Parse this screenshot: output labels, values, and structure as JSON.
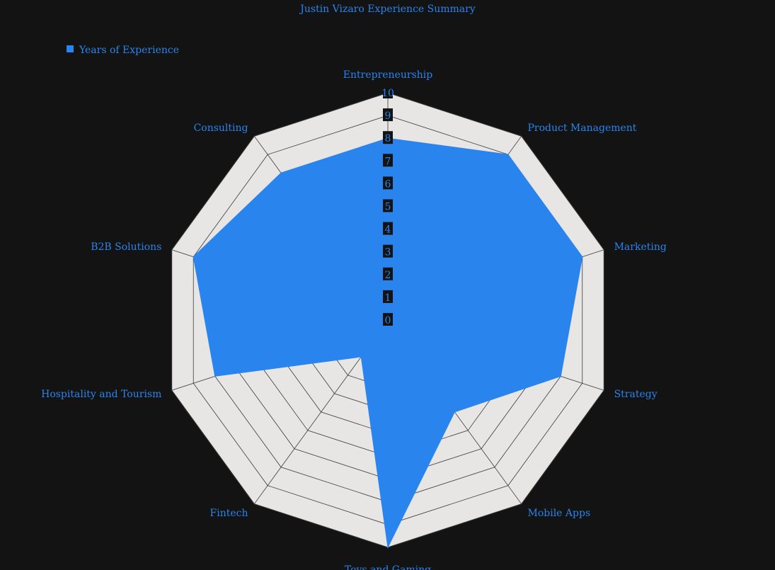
{
  "colors": {
    "background": "#131313",
    "text": "#2a84ee",
    "series": "#2a84ee",
    "grid_fill": "#e8e6e4",
    "grid_line": "#3a3a3a",
    "tick_box": "#131313"
  },
  "chart_data": {
    "type": "radar",
    "title": "Justin Vizaro Experience Summary",
    "legend_position": "top-left",
    "rlim": [
      0,
      10
    ],
    "r_ticks": [
      "0",
      "1",
      "2",
      "3",
      "4",
      "5",
      "6",
      "7",
      "8",
      "9",
      "10"
    ],
    "categories": [
      "Entrepreneurship",
      "Product Management",
      "Marketing",
      "Strategy",
      "Mobile Apps",
      "Toys and Gaming",
      "Fintech",
      "Hospitality and Tourism",
      "B2B Solutions",
      "Consulting"
    ],
    "series": [
      {
        "name": "Years of Experience",
        "values": [
          8,
          9,
          9,
          8,
          5,
          10,
          2,
          8,
          9,
          8
        ]
      }
    ]
  }
}
